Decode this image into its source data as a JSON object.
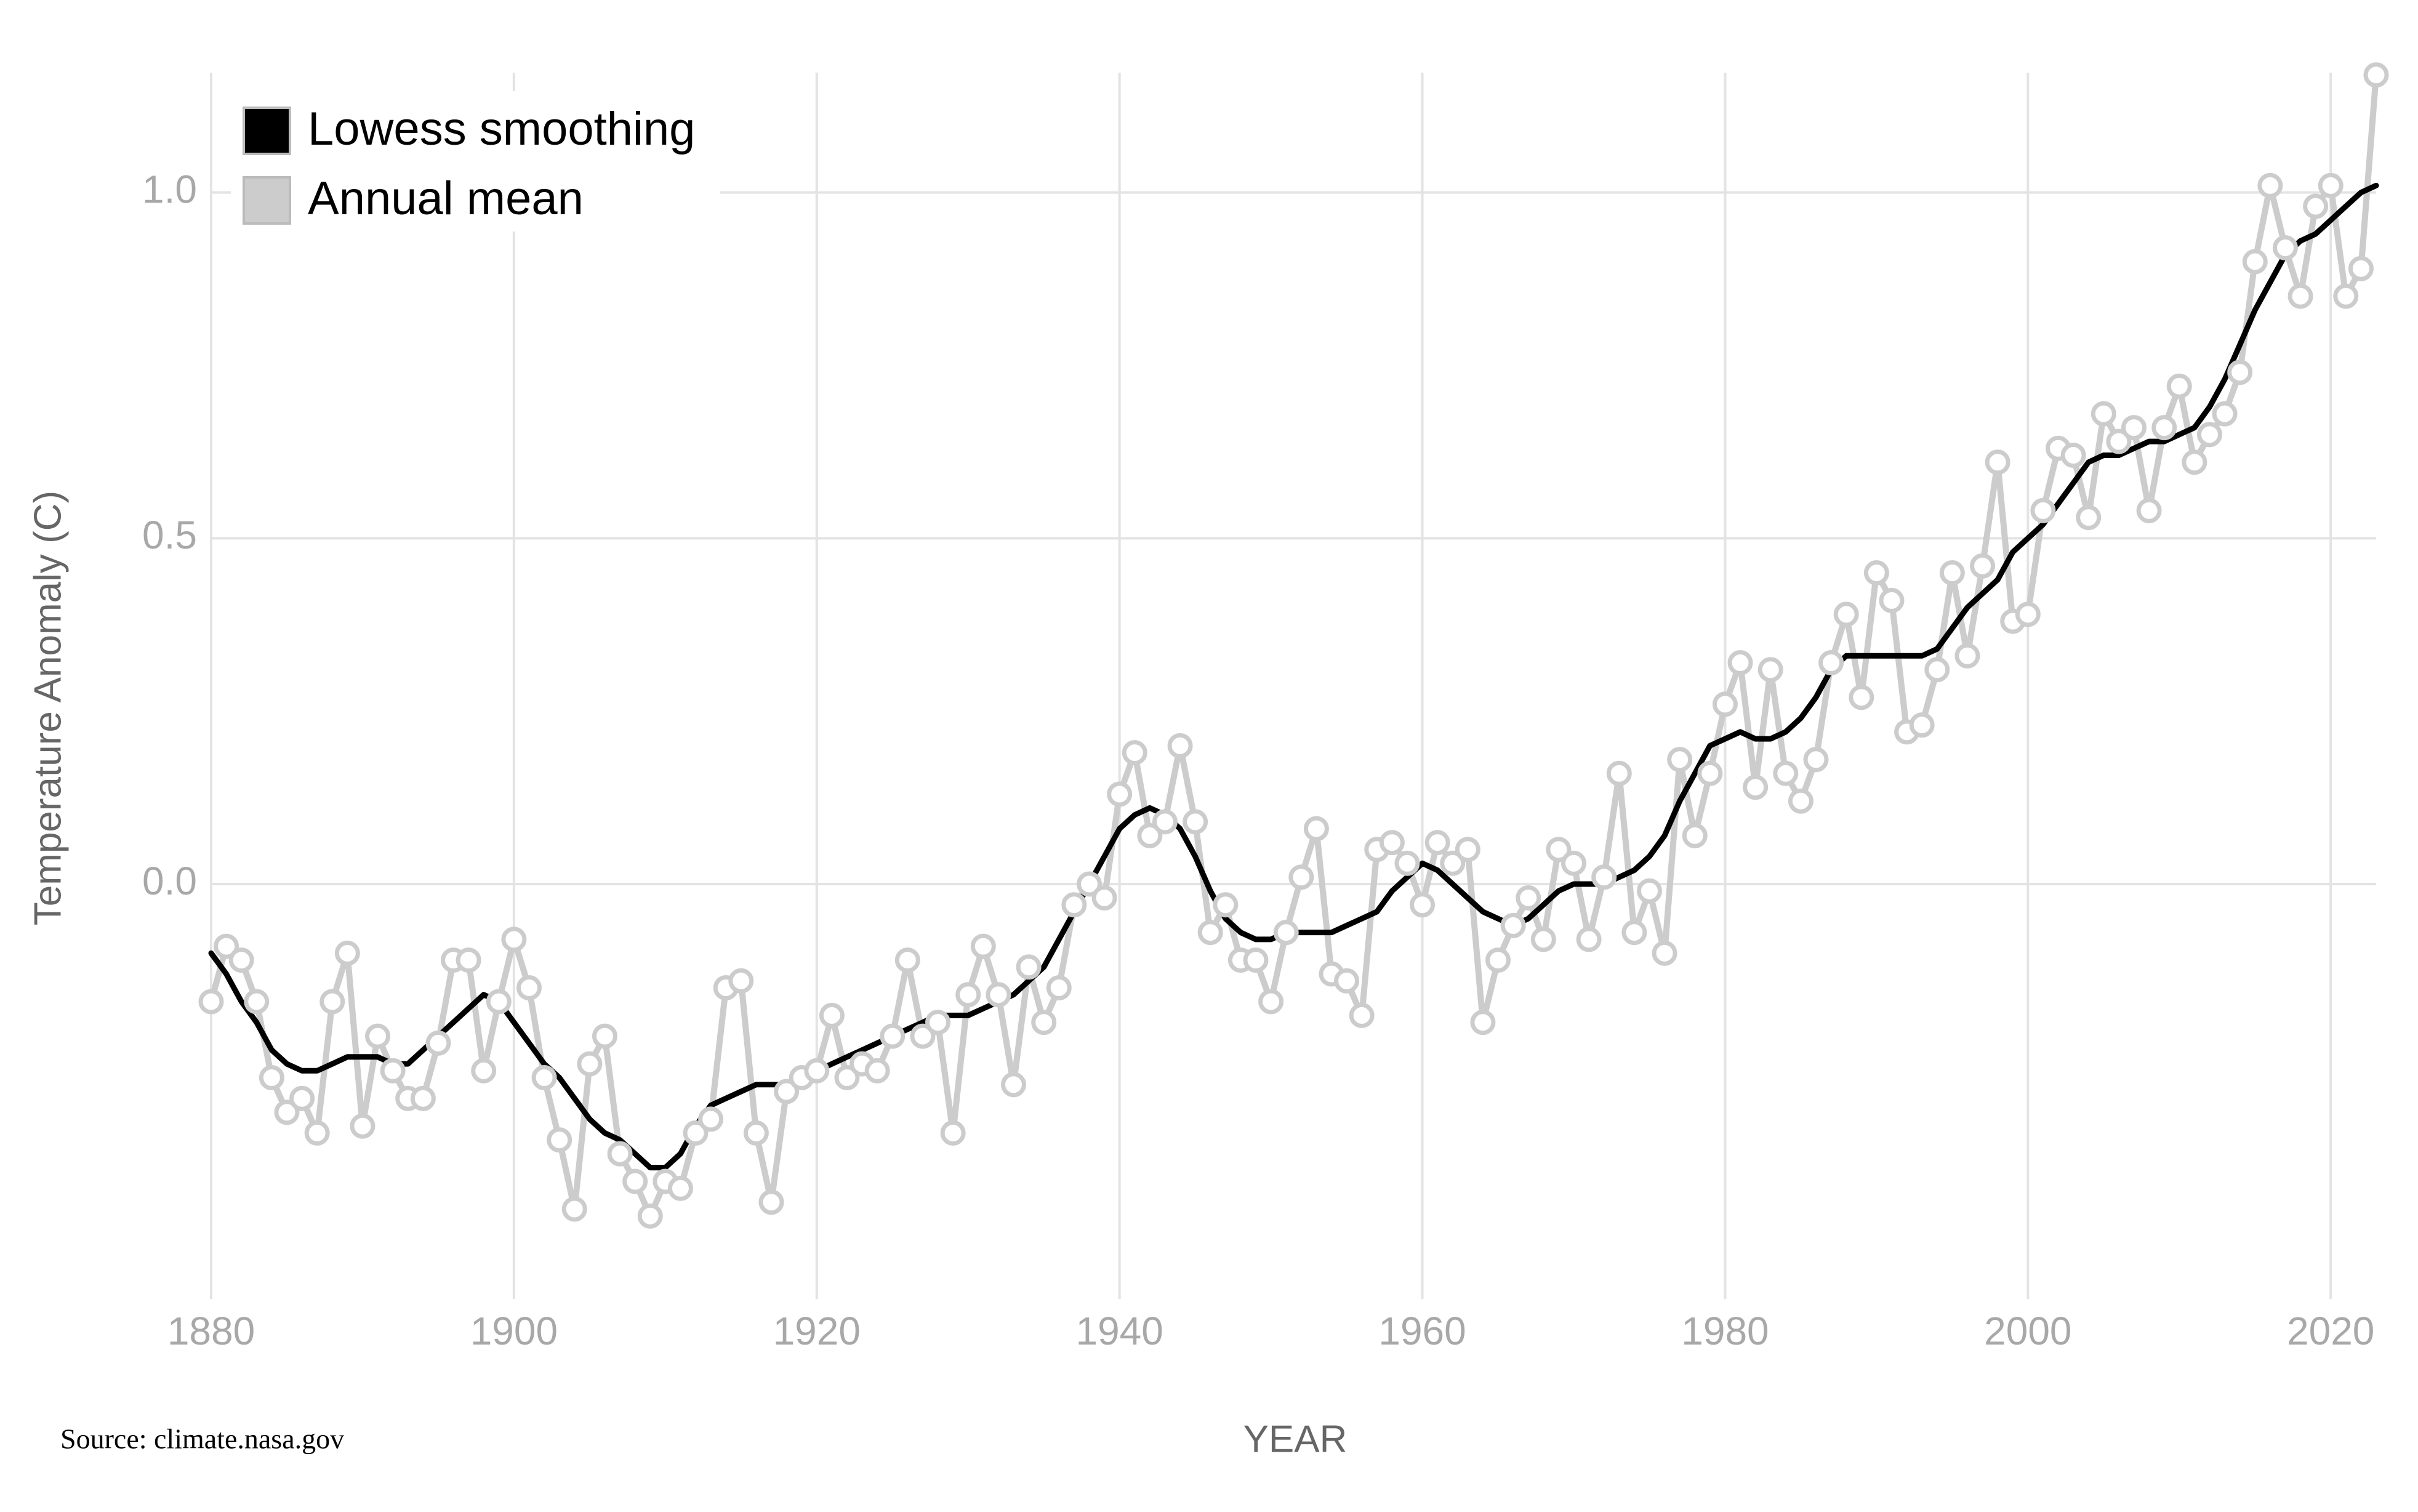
{
  "chart_data": {
    "type": "line",
    "y_label": "Temperature Anomaly (C)",
    "x_label": "YEAR",
    "source": "Source: climate.nasa.gov",
    "legend": "upper left",
    "grid": true,
    "xlim": [
      1880,
      2023
    ],
    "ylim": [
      -0.6,
      1.2
    ],
    "xticks": [
      1880,
      1900,
      1920,
      1940,
      1960,
      1980,
      2000,
      2020
    ],
    "yticks": [
      {
        "value": 0,
        "label": "0.0"
      },
      {
        "value": 0.5,
        "label": "0.5"
      },
      {
        "value": 1,
        "label": "1.0"
      }
    ],
    "x": [
      1880,
      1881,
      1882,
      1883,
      1884,
      1885,
      1886,
      1887,
      1888,
      1889,
      1890,
      1891,
      1892,
      1893,
      1894,
      1895,
      1896,
      1897,
      1898,
      1899,
      1900,
      1901,
      1902,
      1903,
      1904,
      1905,
      1906,
      1907,
      1908,
      1909,
      1910,
      1911,
      1912,
      1913,
      1914,
      1915,
      1916,
      1917,
      1918,
      1919,
      1920,
      1921,
      1922,
      1923,
      1924,
      1925,
      1926,
      1927,
      1928,
      1929,
      1930,
      1931,
      1932,
      1933,
      1934,
      1935,
      1936,
      1937,
      1938,
      1939,
      1940,
      1941,
      1942,
      1943,
      1944,
      1945,
      1946,
      1947,
      1948,
      1949,
      1950,
      1951,
      1952,
      1953,
      1954,
      1955,
      1956,
      1957,
      1958,
      1959,
      1960,
      1961,
      1962,
      1963,
      1964,
      1965,
      1966,
      1967,
      1968,
      1969,
      1970,
      1971,
      1972,
      1973,
      1974,
      1975,
      1976,
      1977,
      1978,
      1979,
      1980,
      1981,
      1982,
      1983,
      1984,
      1985,
      1986,
      1987,
      1988,
      1989,
      1990,
      1991,
      1992,
      1993,
      1994,
      1995,
      1996,
      1997,
      1998,
      1999,
      2000,
      2001,
      2002,
      2003,
      2004,
      2005,
      2006,
      2007,
      2008,
      2009,
      2010,
      2011,
      2012,
      2013,
      2014,
      2015,
      2016,
      2017,
      2018,
      2019,
      2020,
      2021,
      2022,
      2023
    ],
    "series": [
      {
        "name": "Lowess smoothing",
        "color": "#000000",
        "markers": false,
        "values": [
          -0.1,
          -0.13,
          -0.17,
          -0.2,
          -0.24,
          -0.26,
          -0.27,
          -0.27,
          -0.26,
          -0.25,
          -0.25,
          -0.25,
          -0.26,
          -0.26,
          -0.24,
          -0.22,
          -0.2,
          -0.18,
          -0.16,
          -0.17,
          -0.2,
          -0.23,
          -0.26,
          -0.28,
          -0.31,
          -0.34,
          -0.36,
          -0.37,
          -0.39,
          -0.41,
          -0.41,
          -0.39,
          -0.35,
          -0.32,
          -0.31,
          -0.3,
          -0.29,
          -0.29,
          -0.29,
          -0.28,
          -0.27,
          -0.26,
          -0.25,
          -0.24,
          -0.23,
          -0.22,
          -0.21,
          -0.2,
          -0.19,
          -0.19,
          -0.19,
          -0.18,
          -0.17,
          -0.16,
          -0.14,
          -0.12,
          -0.08,
          -0.04,
          0.0,
          0.04,
          0.08,
          0.1,
          0.11,
          0.1,
          0.08,
          0.04,
          -0.01,
          -0.05,
          -0.07,
          -0.08,
          -0.08,
          -0.07,
          -0.07,
          -0.07,
          -0.07,
          -0.06,
          -0.05,
          -0.04,
          -0.01,
          0.01,
          0.03,
          0.02,
          0.0,
          -0.02,
          -0.04,
          -0.05,
          -0.06,
          -0.05,
          -0.03,
          -0.01,
          0.0,
          0.0,
          0.0,
          0.01,
          0.02,
          0.04,
          0.07,
          0.12,
          0.16,
          0.2,
          0.21,
          0.22,
          0.21,
          0.21,
          0.22,
          0.24,
          0.27,
          0.31,
          0.33,
          0.33,
          0.33,
          0.33,
          0.33,
          0.33,
          0.34,
          0.37,
          0.4,
          0.42,
          0.44,
          0.48,
          0.5,
          0.52,
          0.55,
          0.58,
          0.61,
          0.62,
          0.62,
          0.63,
          0.64,
          0.64,
          0.65,
          0.66,
          0.69,
          0.73,
          0.78,
          0.83,
          0.87,
          0.91,
          0.93,
          0.94,
          0.96,
          0.98,
          1.0,
          1.01
        ]
      },
      {
        "name": "Annual mean",
        "color": "#cccccc",
        "markers": true,
        "values": [
          -0.17,
          -0.09,
          -0.11,
          -0.17,
          -0.28,
          -0.33,
          -0.31,
          -0.36,
          -0.17,
          -0.1,
          -0.35,
          -0.22,
          -0.27,
          -0.31,
          -0.31,
          -0.23,
          -0.11,
          -0.11,
          -0.27,
          -0.17,
          -0.08,
          -0.15,
          -0.28,
          -0.37,
          -0.47,
          -0.26,
          -0.22,
          -0.39,
          -0.43,
          -0.48,
          -0.43,
          -0.44,
          -0.36,
          -0.34,
          -0.15,
          -0.14,
          -0.36,
          -0.46,
          -0.3,
          -0.28,
          -0.27,
          -0.19,
          -0.28,
          -0.26,
          -0.27,
          -0.22,
          -0.11,
          -0.22,
          -0.2,
          -0.36,
          -0.16,
          -0.09,
          -0.16,
          -0.29,
          -0.12,
          -0.2,
          -0.15,
          -0.03,
          0.0,
          -0.02,
          0.13,
          0.19,
          0.07,
          0.09,
          0.2,
          0.09,
          -0.07,
          -0.03,
          -0.11,
          -0.11,
          -0.17,
          -0.07,
          0.01,
          0.08,
          -0.13,
          -0.14,
          -0.19,
          0.05,
          0.06,
          0.03,
          -0.03,
          0.06,
          0.03,
          0.05,
          -0.2,
          -0.11,
          -0.06,
          -0.02,
          -0.08,
          0.05,
          0.03,
          -0.08,
          0.01,
          0.16,
          -0.07,
          -0.01,
          -0.1,
          0.18,
          0.07,
          0.16,
          0.26,
          0.32,
          0.14,
          0.31,
          0.16,
          0.12,
          0.18,
          0.32,
          0.39,
          0.27,
          0.45,
          0.41,
          0.22,
          0.23,
          0.31,
          0.45,
          0.33,
          0.46,
          0.61,
          0.38,
          0.39,
          0.54,
          0.63,
          0.62,
          0.53,
          0.68,
          0.64,
          0.66,
          0.54,
          0.66,
          0.72,
          0.61,
          0.65,
          0.68,
          0.74,
          0.9,
          1.01,
          0.92,
          0.85,
          0.98,
          1.01,
          0.85,
          0.89,
          1.17
        ]
      }
    ]
  }
}
